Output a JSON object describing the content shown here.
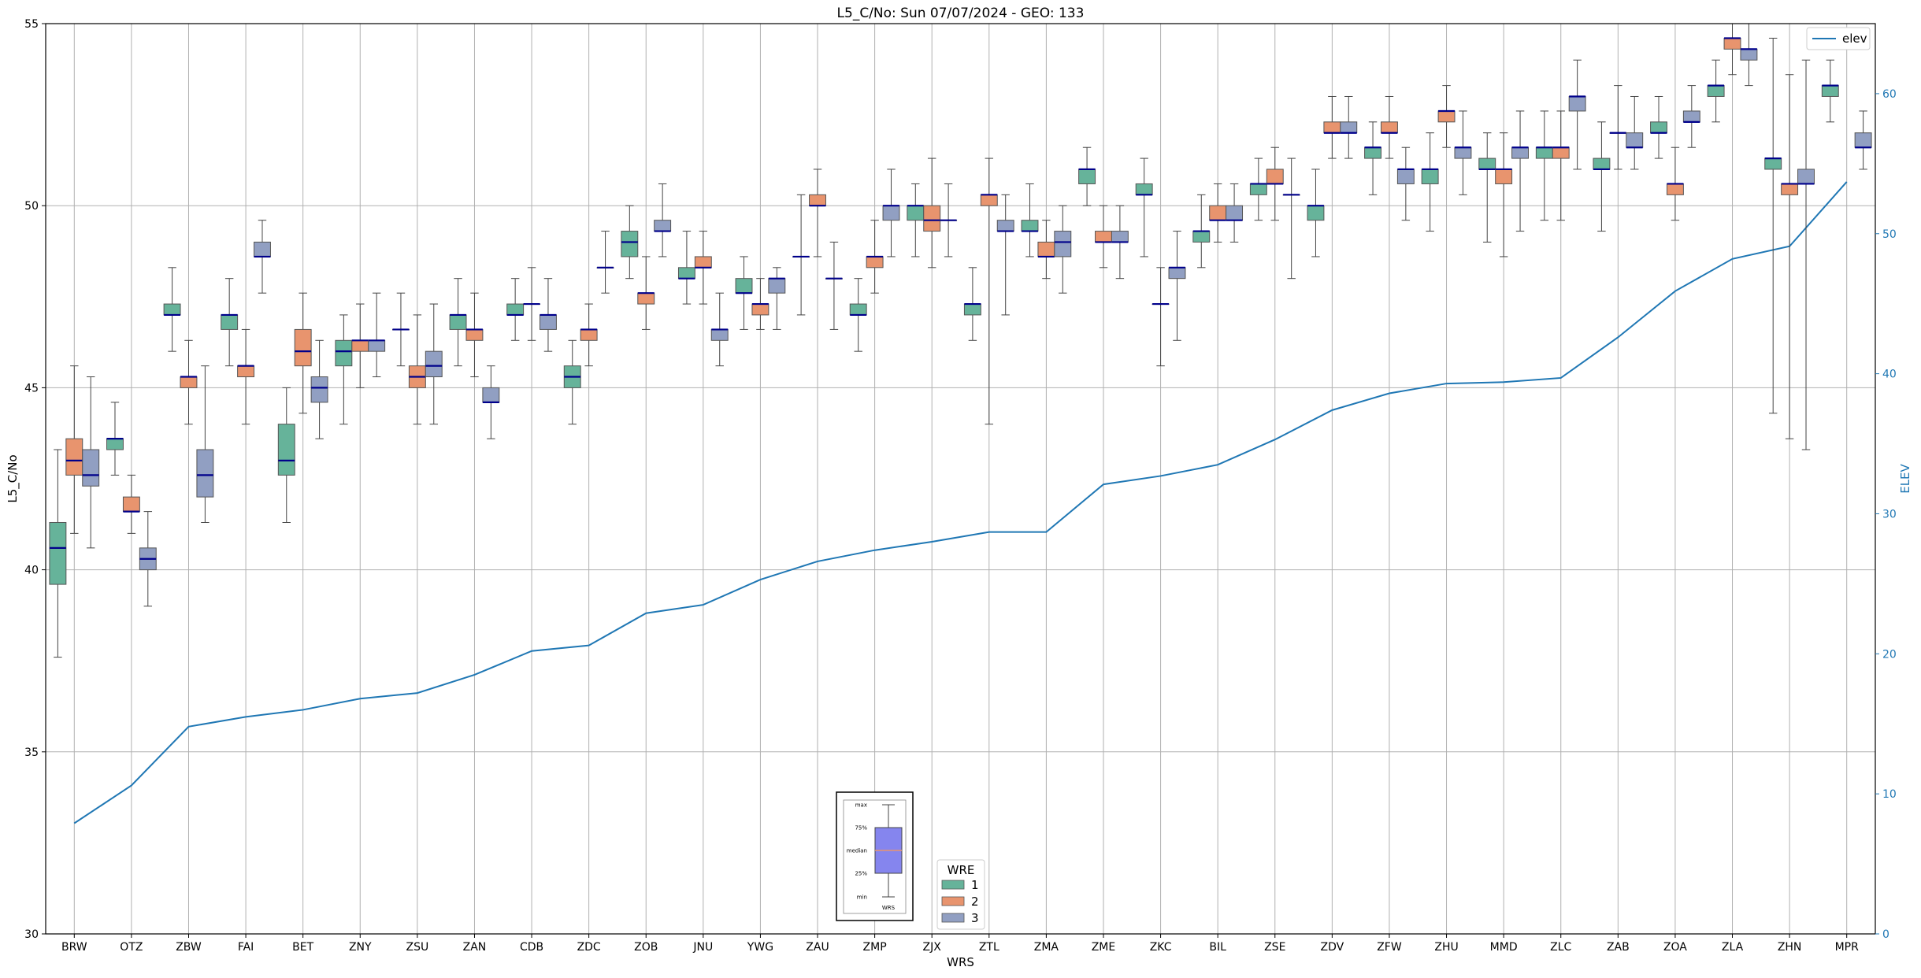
{
  "chart_data": {
    "type": "box",
    "title": "L5_C/No: Sun 07/07/2024 - GEO: 133",
    "xlabel": "WRS",
    "ylabel": "L5_C/No",
    "y2label": "ELEV",
    "ylim": [
      30,
      55
    ],
    "yticks": [
      30,
      35,
      40,
      45,
      50,
      55
    ],
    "y2lim": [
      0,
      65
    ],
    "y2ticks": [
      0,
      10,
      20,
      30,
      40,
      50,
      60
    ],
    "grid": true,
    "categories": [
      "BRW",
      "OTZ",
      "ZBW",
      "FAI",
      "BET",
      "ZNY",
      "ZSU",
      "ZAN",
      "CDB",
      "ZDC",
      "ZOB",
      "JNU",
      "YWG",
      "ZAU",
      "ZMP",
      "ZJX",
      "ZTL",
      "ZMA",
      "ZME",
      "ZKC",
      "BIL",
      "ZSE",
      "ZDV",
      "ZFW",
      "ZHU",
      "MMD",
      "ZLC",
      "ZAB",
      "ZOA",
      "ZLA",
      "ZHN",
      "MPR"
    ],
    "wre_colors": {
      "1": "#66b39a",
      "2": "#e8946e",
      "3": "#919fc2"
    },
    "boxes": [
      {
        "site": "BRW",
        "wre": 1,
        "min": 37.6,
        "q1": 39.6,
        "median": 40.6,
        "q3": 41.3,
        "max": 43.3
      },
      {
        "site": "BRW",
        "wre": 2,
        "min": 41.0,
        "q1": 42.6,
        "median": 43.0,
        "q3": 43.6,
        "max": 45.6
      },
      {
        "site": "BRW",
        "wre": 3,
        "min": 40.6,
        "q1": 42.3,
        "median": 42.6,
        "q3": 43.3,
        "max": 45.3
      },
      {
        "site": "OTZ",
        "wre": 1,
        "min": 42.6,
        "q1": 43.3,
        "median": 43.6,
        "q3": 43.6,
        "max": 44.6
      },
      {
        "site": "OTZ",
        "wre": 2,
        "min": 41.0,
        "q1": 41.6,
        "median": 41.6,
        "q3": 42.0,
        "max": 42.6
      },
      {
        "site": "OTZ",
        "wre": 3,
        "min": 39.0,
        "q1": 40.0,
        "median": 40.3,
        "q3": 40.6,
        "max": 41.6
      },
      {
        "site": "ZBW",
        "wre": 1,
        "min": 46.0,
        "q1": 47.0,
        "median": 47.0,
        "q3": 47.3,
        "max": 48.3
      },
      {
        "site": "ZBW",
        "wre": 2,
        "min": 44.0,
        "q1": 45.0,
        "median": 45.3,
        "q3": 45.3,
        "max": 46.3
      },
      {
        "site": "ZBW",
        "wre": 3,
        "min": 41.3,
        "q1": 42.0,
        "median": 42.6,
        "q3": 43.3,
        "max": 45.6
      },
      {
        "site": "FAI",
        "wre": 1,
        "min": 45.6,
        "q1": 46.6,
        "median": 47.0,
        "q3": 47.0,
        "max": 48.0
      },
      {
        "site": "FAI",
        "wre": 2,
        "min": 44.0,
        "q1": 45.3,
        "median": 45.6,
        "q3": 45.6,
        "max": 46.6
      },
      {
        "site": "FAI",
        "wre": 3,
        "min": 47.6,
        "q1": 48.6,
        "median": 48.6,
        "q3": 49.0,
        "max": 49.6
      },
      {
        "site": "BET",
        "wre": 1,
        "min": 41.3,
        "q1": 42.6,
        "median": 43.0,
        "q3": 44.0,
        "max": 45.0
      },
      {
        "site": "BET",
        "wre": 2,
        "min": 44.3,
        "q1": 45.6,
        "median": 46.0,
        "q3": 46.6,
        "max": 47.6
      },
      {
        "site": "BET",
        "wre": 3,
        "min": 43.6,
        "q1": 44.6,
        "median": 45.0,
        "q3": 45.3,
        "max": 46.3
      },
      {
        "site": "ZNY",
        "wre": 1,
        "min": 44.0,
        "q1": 45.6,
        "median": 46.0,
        "q3": 46.3,
        "max": 47.0
      },
      {
        "site": "ZNY",
        "wre": 2,
        "min": 45.0,
        "q1": 46.0,
        "median": 46.3,
        "q3": 46.3,
        "max": 47.3
      },
      {
        "site": "ZNY",
        "wre": 3,
        "min": 45.3,
        "q1": 46.0,
        "median": 46.3,
        "q3": 46.3,
        "max": 47.6
      },
      {
        "site": "ZSU",
        "wre": 1,
        "min": 45.6,
        "q1": 46.6,
        "median": 46.6,
        "q3": 46.6,
        "max": 47.6
      },
      {
        "site": "ZSU",
        "wre": 2,
        "min": 44.0,
        "q1": 45.0,
        "median": 45.3,
        "q3": 45.6,
        "max": 47.0
      },
      {
        "site": "ZSU",
        "wre": 3,
        "min": 44.0,
        "q1": 45.3,
        "median": 45.6,
        "q3": 46.0,
        "max": 47.3
      },
      {
        "site": "ZAN",
        "wre": 1,
        "min": 45.6,
        "q1": 46.6,
        "median": 47.0,
        "q3": 47.0,
        "max": 48.0
      },
      {
        "site": "ZAN",
        "wre": 2,
        "min": 45.3,
        "q1": 46.3,
        "median": 46.6,
        "q3": 46.6,
        "max": 47.6
      },
      {
        "site": "ZAN",
        "wre": 3,
        "min": 43.6,
        "q1": 44.6,
        "median": 44.6,
        "q3": 45.0,
        "max": 45.6
      },
      {
        "site": "CDB",
        "wre": 1,
        "min": 46.3,
        "q1": 47.0,
        "median": 47.0,
        "q3": 47.3,
        "max": 48.0
      },
      {
        "site": "CDB",
        "wre": 2,
        "min": 46.3,
        "q1": 47.3,
        "median": 47.3,
        "q3": 47.3,
        "max": 48.3
      },
      {
        "site": "CDB",
        "wre": 3,
        "min": 46.0,
        "q1": 46.6,
        "median": 47.0,
        "q3": 47.0,
        "max": 48.0
      },
      {
        "site": "ZDC",
        "wre": 1,
        "min": 44.0,
        "q1": 45.0,
        "median": 45.3,
        "q3": 45.6,
        "max": 46.3
      },
      {
        "site": "ZDC",
        "wre": 2,
        "min": 45.6,
        "q1": 46.3,
        "median": 46.6,
        "q3": 46.6,
        "max": 47.3
      },
      {
        "site": "ZDC",
        "wre": 3,
        "min": 47.6,
        "q1": 48.3,
        "median": 48.3,
        "q3": 48.3,
        "max": 49.3
      },
      {
        "site": "ZOB",
        "wre": 1,
        "min": 48.0,
        "q1": 48.6,
        "median": 49.0,
        "q3": 49.3,
        "max": 50.0
      },
      {
        "site": "ZOB",
        "wre": 2,
        "min": 46.6,
        "q1": 47.3,
        "median": 47.6,
        "q3": 47.6,
        "max": 48.6
      },
      {
        "site": "ZOB",
        "wre": 3,
        "min": 48.6,
        "q1": 49.3,
        "median": 49.3,
        "q3": 49.6,
        "max": 50.6
      },
      {
        "site": "JNU",
        "wre": 1,
        "min": 47.3,
        "q1": 48.0,
        "median": 48.0,
        "q3": 48.3,
        "max": 49.3
      },
      {
        "site": "JNU",
        "wre": 2,
        "min": 47.3,
        "q1": 48.3,
        "median": 48.3,
        "q3": 48.6,
        "max": 49.3
      },
      {
        "site": "JNU",
        "wre": 3,
        "min": 45.6,
        "q1": 46.3,
        "median": 46.6,
        "q3": 46.6,
        "max": 47.6
      },
      {
        "site": "YWG",
        "wre": 1,
        "min": 46.6,
        "q1": 47.6,
        "median": 47.6,
        "q3": 48.0,
        "max": 48.6
      },
      {
        "site": "YWG",
        "wre": 2,
        "min": 46.6,
        "q1": 47.0,
        "median": 47.3,
        "q3": 47.3,
        "max": 48.0
      },
      {
        "site": "YWG",
        "wre": 3,
        "min": 46.6,
        "q1": 47.6,
        "median": 48.0,
        "q3": 48.0,
        "max": 48.3
      },
      {
        "site": "ZAU",
        "wre": 1,
        "min": 47.0,
        "q1": 48.6,
        "median": 48.6,
        "q3": 48.6,
        "max": 50.3
      },
      {
        "site": "ZAU",
        "wre": 2,
        "min": 48.6,
        "q1": 50.0,
        "median": 50.0,
        "q3": 50.3,
        "max": 51.0
      },
      {
        "site": "ZAU",
        "wre": 3,
        "min": 46.6,
        "q1": 48.0,
        "median": 48.0,
        "q3": 48.0,
        "max": 49.0
      },
      {
        "site": "ZMP",
        "wre": 1,
        "min": 46.0,
        "q1": 47.0,
        "median": 47.0,
        "q3": 47.3,
        "max": 48.0
      },
      {
        "site": "ZMP",
        "wre": 2,
        "min": 47.6,
        "q1": 48.3,
        "median": 48.6,
        "q3": 48.6,
        "max": 49.6
      },
      {
        "site": "ZMP",
        "wre": 3,
        "min": 48.6,
        "q1": 49.6,
        "median": 50.0,
        "q3": 50.0,
        "max": 51.0
      },
      {
        "site": "ZJX",
        "wre": 1,
        "min": 48.6,
        "q1": 49.6,
        "median": 50.0,
        "q3": 50.0,
        "max": 50.6
      },
      {
        "site": "ZJX",
        "wre": 2,
        "min": 48.3,
        "q1": 49.3,
        "median": 49.6,
        "q3": 50.0,
        "max": 51.3
      },
      {
        "site": "ZJX",
        "wre": 3,
        "min": 48.6,
        "q1": 49.6,
        "median": 49.6,
        "q3": 49.6,
        "max": 50.6
      },
      {
        "site": "ZTL",
        "wre": 1,
        "min": 46.3,
        "q1": 47.0,
        "median": 47.3,
        "q3": 47.3,
        "max": 48.3
      },
      {
        "site": "ZTL",
        "wre": 2,
        "min": 44.0,
        "q1": 50.0,
        "median": 50.3,
        "q3": 50.3,
        "max": 51.3
      },
      {
        "site": "ZTL",
        "wre": 3,
        "min": 47.0,
        "q1": 49.3,
        "median": 49.3,
        "q3": 49.6,
        "max": 50.3
      },
      {
        "site": "ZMA",
        "wre": 1,
        "min": 48.6,
        "q1": 49.3,
        "median": 49.3,
        "q3": 49.6,
        "max": 50.6
      },
      {
        "site": "ZMA",
        "wre": 2,
        "min": 48.0,
        "q1": 48.6,
        "median": 48.6,
        "q3": 49.0,
        "max": 49.6
      },
      {
        "site": "ZMA",
        "wre": 3,
        "min": 47.6,
        "q1": 48.6,
        "median": 49.0,
        "q3": 49.3,
        "max": 50.0
      },
      {
        "site": "ZME",
        "wre": 1,
        "min": 50.0,
        "q1": 50.6,
        "median": 51.0,
        "q3": 51.0,
        "max": 51.6
      },
      {
        "site": "ZME",
        "wre": 2,
        "min": 48.3,
        "q1": 49.0,
        "median": 49.0,
        "q3": 49.3,
        "max": 50.0
      },
      {
        "site": "ZME",
        "wre": 3,
        "min": 48.0,
        "q1": 49.0,
        "median": 49.0,
        "q3": 49.3,
        "max": 50.0
      },
      {
        "site": "ZKC",
        "wre": 1,
        "min": 48.6,
        "q1": 50.3,
        "median": 50.3,
        "q3": 50.6,
        "max": 51.3
      },
      {
        "site": "ZKC",
        "wre": 2,
        "min": 45.6,
        "q1": 47.3,
        "median": 47.3,
        "q3": 47.3,
        "max": 48.3
      },
      {
        "site": "ZKC",
        "wre": 3,
        "min": 46.3,
        "q1": 48.0,
        "median": 48.3,
        "q3": 48.3,
        "max": 49.3
      },
      {
        "site": "BIL",
        "wre": 1,
        "min": 48.3,
        "q1": 49.0,
        "median": 49.3,
        "q3": 49.3,
        "max": 50.3
      },
      {
        "site": "BIL",
        "wre": 2,
        "min": 49.0,
        "q1": 49.6,
        "median": 49.6,
        "q3": 50.0,
        "max": 50.6
      },
      {
        "site": "BIL",
        "wre": 3,
        "min": 49.0,
        "q1": 49.6,
        "median": 49.6,
        "q3": 50.0,
        "max": 50.6
      },
      {
        "site": "ZSE",
        "wre": 1,
        "min": 49.6,
        "q1": 50.3,
        "median": 50.6,
        "q3": 50.6,
        "max": 51.3
      },
      {
        "site": "ZSE",
        "wre": 2,
        "min": 49.6,
        "q1": 50.6,
        "median": 50.6,
        "q3": 51.0,
        "max": 51.6
      },
      {
        "site": "ZSE",
        "wre": 3,
        "min": 48.0,
        "q1": 50.3,
        "median": 50.3,
        "q3": 50.3,
        "max": 51.3
      },
      {
        "site": "ZDV",
        "wre": 1,
        "min": 48.6,
        "q1": 49.6,
        "median": 50.0,
        "q3": 50.0,
        "max": 51.0
      },
      {
        "site": "ZDV",
        "wre": 2,
        "min": 51.3,
        "q1": 52.0,
        "median": 52.0,
        "q3": 52.3,
        "max": 53.0
      },
      {
        "site": "ZDV",
        "wre": 3,
        "min": 51.3,
        "q1": 52.0,
        "median": 52.0,
        "q3": 52.3,
        "max": 53.0
      },
      {
        "site": "ZFW",
        "wre": 1,
        "min": 50.3,
        "q1": 51.3,
        "median": 51.6,
        "q3": 51.6,
        "max": 52.3
      },
      {
        "site": "ZFW",
        "wre": 2,
        "min": 51.3,
        "q1": 52.0,
        "median": 52.0,
        "q3": 52.3,
        "max": 53.0
      },
      {
        "site": "ZFW",
        "wre": 3,
        "min": 49.6,
        "q1": 50.6,
        "median": 51.0,
        "q3": 51.0,
        "max": 51.6
      },
      {
        "site": "ZHU",
        "wre": 1,
        "min": 49.3,
        "q1": 50.6,
        "median": 51.0,
        "q3": 51.0,
        "max": 52.0
      },
      {
        "site": "ZHU",
        "wre": 2,
        "min": 51.6,
        "q1": 52.3,
        "median": 52.6,
        "q3": 52.6,
        "max": 53.3
      },
      {
        "site": "ZHU",
        "wre": 3,
        "min": 50.3,
        "q1": 51.3,
        "median": 51.6,
        "q3": 51.6,
        "max": 52.6
      },
      {
        "site": "MMD",
        "wre": 1,
        "min": 49.0,
        "q1": 51.0,
        "median": 51.0,
        "q3": 51.3,
        "max": 52.0
      },
      {
        "site": "MMD",
        "wre": 2,
        "min": 48.6,
        "q1": 50.6,
        "median": 51.0,
        "q3": 51.0,
        "max": 52.0
      },
      {
        "site": "MMD",
        "wre": 3,
        "min": 49.3,
        "q1": 51.3,
        "median": 51.6,
        "q3": 51.6,
        "max": 52.6
      },
      {
        "site": "ZLC",
        "wre": 1,
        "min": 49.6,
        "q1": 51.3,
        "median": 51.6,
        "q3": 51.6,
        "max": 52.6
      },
      {
        "site": "ZLC",
        "wre": 2,
        "min": 49.6,
        "q1": 51.3,
        "median": 51.6,
        "q3": 51.6,
        "max": 52.6
      },
      {
        "site": "ZLC",
        "wre": 3,
        "min": 51.0,
        "q1": 52.6,
        "median": 53.0,
        "q3": 53.0,
        "max": 54.0
      },
      {
        "site": "ZAB",
        "wre": 1,
        "min": 49.3,
        "q1": 51.0,
        "median": 51.0,
        "q3": 51.3,
        "max": 52.3
      },
      {
        "site": "ZAB",
        "wre": 2,
        "min": 51.0,
        "q1": 52.0,
        "median": 52.0,
        "q3": 52.0,
        "max": 53.3
      },
      {
        "site": "ZAB",
        "wre": 3,
        "min": 51.0,
        "q1": 51.6,
        "median": 51.6,
        "q3": 52.0,
        "max": 53.0
      },
      {
        "site": "ZOA",
        "wre": 1,
        "min": 51.3,
        "q1": 52.0,
        "median": 52.0,
        "q3": 52.3,
        "max": 53.0
      },
      {
        "site": "ZOA",
        "wre": 2,
        "min": 49.6,
        "q1": 50.3,
        "median": 50.6,
        "q3": 50.6,
        "max": 51.6
      },
      {
        "site": "ZOA",
        "wre": 3,
        "min": 51.6,
        "q1": 52.3,
        "median": 52.3,
        "q3": 52.6,
        "max": 53.3
      },
      {
        "site": "ZLA",
        "wre": 1,
        "min": 52.3,
        "q1": 53.0,
        "median": 53.3,
        "q3": 53.3,
        "max": 54.0
      },
      {
        "site": "ZLA",
        "wre": 2,
        "min": 53.6,
        "q1": 54.3,
        "median": 54.6,
        "q3": 54.6,
        "max": 55.0
      },
      {
        "site": "ZLA",
        "wre": 3,
        "min": 53.3,
        "q1": 54.0,
        "median": 54.3,
        "q3": 54.3,
        "max": 55.0
      },
      {
        "site": "ZHN",
        "wre": 1,
        "min": 44.3,
        "q1": 51.0,
        "median": 51.3,
        "q3": 51.3,
        "max": 54.6
      },
      {
        "site": "ZHN",
        "wre": 2,
        "min": 43.6,
        "q1": 50.3,
        "median": 50.6,
        "q3": 50.6,
        "max": 53.6
      },
      {
        "site": "ZHN",
        "wre": 3,
        "min": 43.3,
        "q1": 50.6,
        "median": 50.6,
        "q3": 51.0,
        "max": 54.0
      },
      {
        "site": "MPR",
        "wre": 1,
        "min": 52.3,
        "q1": 53.0,
        "median": 53.3,
        "q3": 53.3,
        "max": 54.0
      },
      {
        "site": "MPR",
        "wre": 3,
        "min": 51.0,
        "q1": 51.6,
        "median": 51.6,
        "q3": 52.0,
        "max": 52.6
      }
    ],
    "elev": {
      "name": "elev",
      "color": "#1f77b4",
      "values": [
        7.9,
        10.6,
        14.8,
        15.5,
        16.0,
        16.8,
        17.2,
        18.5,
        20.2,
        20.6,
        22.9,
        23.5,
        25.3,
        26.6,
        27.4,
        28.0,
        28.7,
        28.7,
        32.1,
        32.7,
        33.5,
        35.3,
        37.4,
        38.6,
        39.3,
        39.4,
        39.7,
        42.6,
        45.9,
        48.2,
        49.1,
        53.7
      ]
    },
    "legend_wre": {
      "title": "WRE",
      "items": [
        "1",
        "2",
        "3"
      ],
      "placement": "bottom-center"
    },
    "legend_elev": {
      "placement": "top-right"
    },
    "inset_key": {
      "labels": [
        "max",
        "75%",
        "median",
        "25%",
        "min"
      ],
      "caption": "WRS"
    }
  }
}
